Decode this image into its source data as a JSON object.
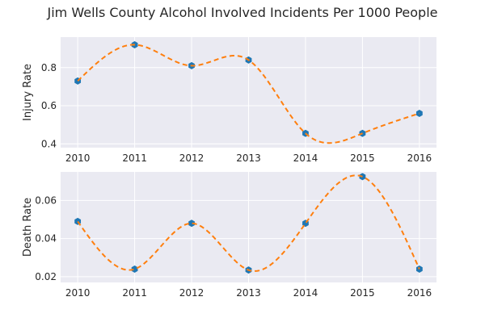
{
  "title": "Jim Wells County Alcohol Involved Incidents Per 1000 People",
  "colors": {
    "background": "#ffffff",
    "panel": "#eaeaf2",
    "grid": "#ffffff",
    "marker": "#1f77b4",
    "curve": "#ff7f0e",
    "text": "#262626"
  },
  "chart_data": [
    {
      "type": "line",
      "title": "Jim Wells County Alcohol Involved Incidents Per 1000 People",
      "xlabel": "",
      "ylabel": "Injury Rate",
      "x": [
        2010,
        2011,
        2012,
        2013,
        2014,
        2015,
        2016
      ],
      "xtick_labels": [
        "2010",
        "2011",
        "2012",
        "2013",
        "2014",
        "2015",
        "2016"
      ],
      "ytick_values": [
        0.4,
        0.6,
        0.8
      ],
      "ytick_labels": [
        "0.4",
        "0.6",
        "0.8"
      ],
      "ylim": [
        0.38,
        0.96
      ],
      "xlim": [
        2009.7,
        2016.3
      ],
      "grid": true,
      "series": [
        {
          "values": [
            0.73,
            0.92,
            0.81,
            0.84,
            0.455,
            0.455,
            0.56
          ],
          "marker": "hexagon",
          "line": "spline-dashed"
        }
      ]
    },
    {
      "type": "line",
      "xlabel": "",
      "ylabel": "Death Rate",
      "x": [
        2010,
        2011,
        2012,
        2013,
        2014,
        2015,
        2016
      ],
      "xtick_labels": [
        "2010",
        "2011",
        "2012",
        "2013",
        "2014",
        "2015",
        "2016"
      ],
      "ytick_values": [
        0.02,
        0.04,
        0.06
      ],
      "ytick_labels": [
        "0.02",
        "0.04",
        "0.06"
      ],
      "ylim": [
        0.017,
        0.075
      ],
      "xlim": [
        2009.7,
        2016.3
      ],
      "grid": true,
      "series": [
        {
          "values": [
            0.049,
            0.024,
            0.048,
            0.0235,
            0.048,
            0.0725,
            0.024
          ],
          "marker": "hexagon",
          "line": "spline-dashed"
        }
      ]
    }
  ]
}
